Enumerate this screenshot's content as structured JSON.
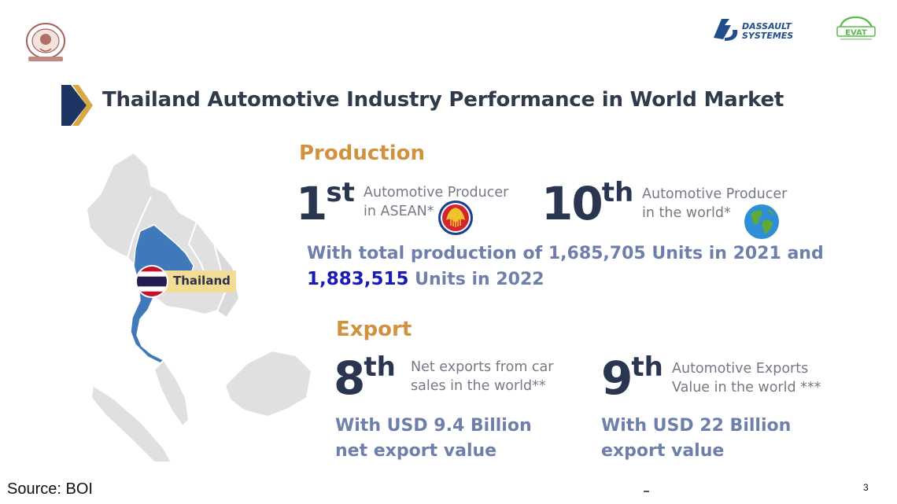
{
  "title": "Thailand Automotive Industry Performance in World Market",
  "map": {
    "country_label": "Thailand"
  },
  "production": {
    "heading": "Production",
    "rank1": {
      "number": "1",
      "suffix": "st",
      "desc_line1": "Automotive Producer",
      "desc_line2": "in ASEAN*"
    },
    "rank2": {
      "number": "10",
      "suffix": "th",
      "desc_line1": "Automotive Producer",
      "desc_line2": "in the world*"
    },
    "statement_line1": "With total production of 1,685,705 Units in 2021 and",
    "statement_highlight": "1,883,515",
    "statement_line2_rest": " Units in 2022"
  },
  "export": {
    "heading": "Export",
    "rank1": {
      "number": "8",
      "suffix": "th",
      "desc_line1": "Net exports from car",
      "desc_line2": "sales in the world**",
      "value_line1": "With USD 9.4 Billion",
      "value_line2": "net export value"
    },
    "rank2": {
      "number": "9",
      "suffix": "th",
      "desc_line1": "Automotive Exports",
      "desc_line2": "Value in the world ***",
      "value_line1": "With USD 22 Billion",
      "value_line2": "export value"
    }
  },
  "logos": {
    "dassault_line1": "DASSAULT",
    "dassault_line2": "SYSTEMES",
    "evat": "EVAT"
  },
  "footer": {
    "source": "Source: BOI",
    "page_number": "3"
  },
  "colors": {
    "title": "#2f3a4a",
    "section_heading": "#d1923f",
    "rank": "#2a3550",
    "statement": "#6f7fac",
    "highlight": "#1a1ab8",
    "map_thailand": "#3f79b9"
  }
}
